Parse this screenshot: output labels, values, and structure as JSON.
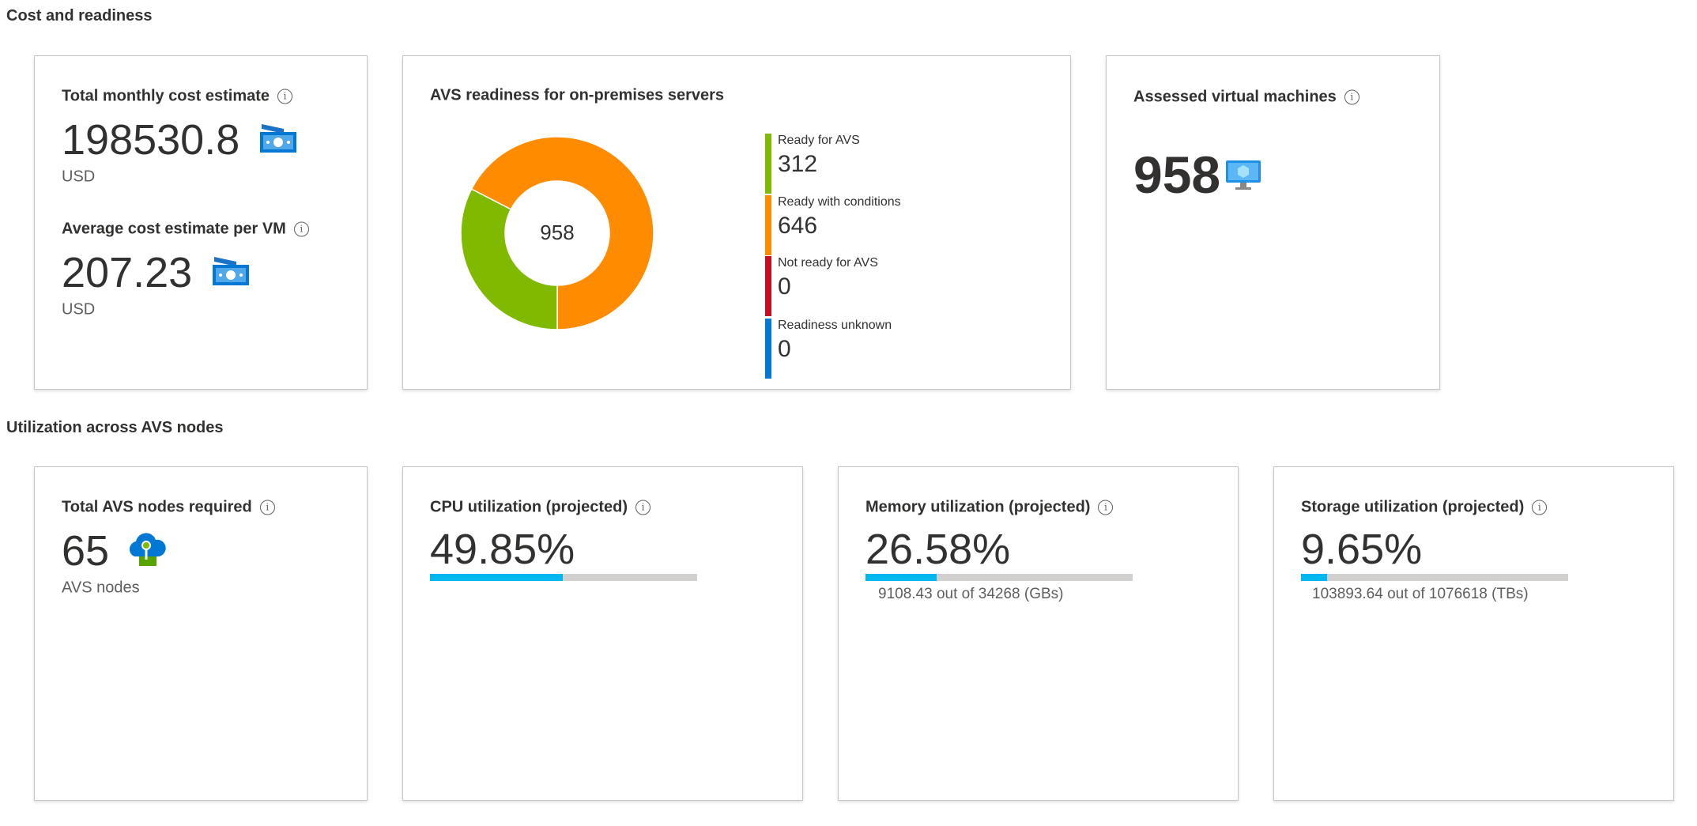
{
  "sections": {
    "cost": "Cost and readiness",
    "utilization": "Utilization across AVS nodes"
  },
  "cost_card": {
    "total_title": "Total monthly cost estimate",
    "total_value": "198530.8",
    "total_unit": "USD",
    "avg_title": "Average cost estimate per VM",
    "avg_value": "207.23",
    "avg_unit": "USD",
    "icon": "money-bill-icon",
    "info_glyph": "i"
  },
  "readiness": {
    "title": "AVS readiness for on-premises servers",
    "total": "958",
    "items": [
      {
        "label": "Ready for AVS",
        "value": 312,
        "color": "#7fba00"
      },
      {
        "label": "Ready with conditions",
        "value": 646,
        "color": "#ff8c00"
      },
      {
        "label": "Not ready for AVS",
        "value": 0,
        "color": "#c50f1f"
      },
      {
        "label": "Readiness unknown",
        "value": 0,
        "color": "#0078d4"
      }
    ]
  },
  "assessed": {
    "title": "Assessed virtual machines",
    "value": "958",
    "icon": "virtual-machine-icon"
  },
  "nodes": {
    "title": "Total AVS nodes required",
    "value": "65",
    "unit": "AVS nodes",
    "icon": "avs-cloud-icon"
  },
  "cpu": {
    "title": "CPU utilization (projected)",
    "value": "49.85%",
    "percent": 49.85
  },
  "memory": {
    "title": "Memory utilization (projected)",
    "value": "26.58%",
    "percent": 26.58,
    "detail": "9108.43 out of 34268 (GBs)"
  },
  "storage": {
    "title": "Storage utilization (projected)",
    "value": "9.65%",
    "percent": 9.65,
    "detail": "103893.64 out of 1076618 (TBs)"
  },
  "colors": {
    "bar_fill": "#00b7f0",
    "bar_track": "#d2d0ce"
  }
}
